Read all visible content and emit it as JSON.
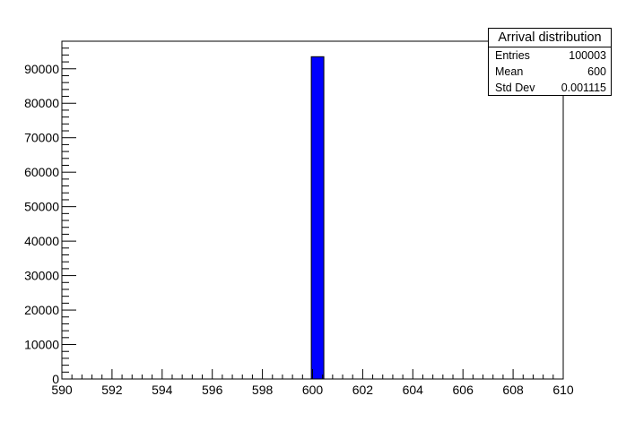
{
  "chart_data": {
    "type": "bar",
    "title": "",
    "xlabel": "",
    "ylabel": "",
    "xlim": [
      590,
      610
    ],
    "ylim": [
      0,
      98000
    ],
    "x_ticks": [
      "590",
      "592",
      "594",
      "596",
      "598",
      "600",
      "602",
      "604",
      "606",
      "608",
      "610"
    ],
    "y_ticks": [
      "0",
      "10000",
      "20000",
      "30000",
      "40000",
      "50000",
      "60000",
      "70000",
      "80000",
      "90000"
    ],
    "bins": [
      {
        "x_low": 599.95,
        "x_high": 600.45,
        "value": 93500
      }
    ],
    "bar_color": "#0000ff",
    "grid": false,
    "legend": "none"
  },
  "stats_box": {
    "title": "Arrival distribution",
    "rows": [
      {
        "label": "Entries",
        "value": "100003"
      },
      {
        "label": "Mean",
        "value": "600"
      },
      {
        "label": "Std Dev",
        "value": "0.001115"
      }
    ]
  }
}
